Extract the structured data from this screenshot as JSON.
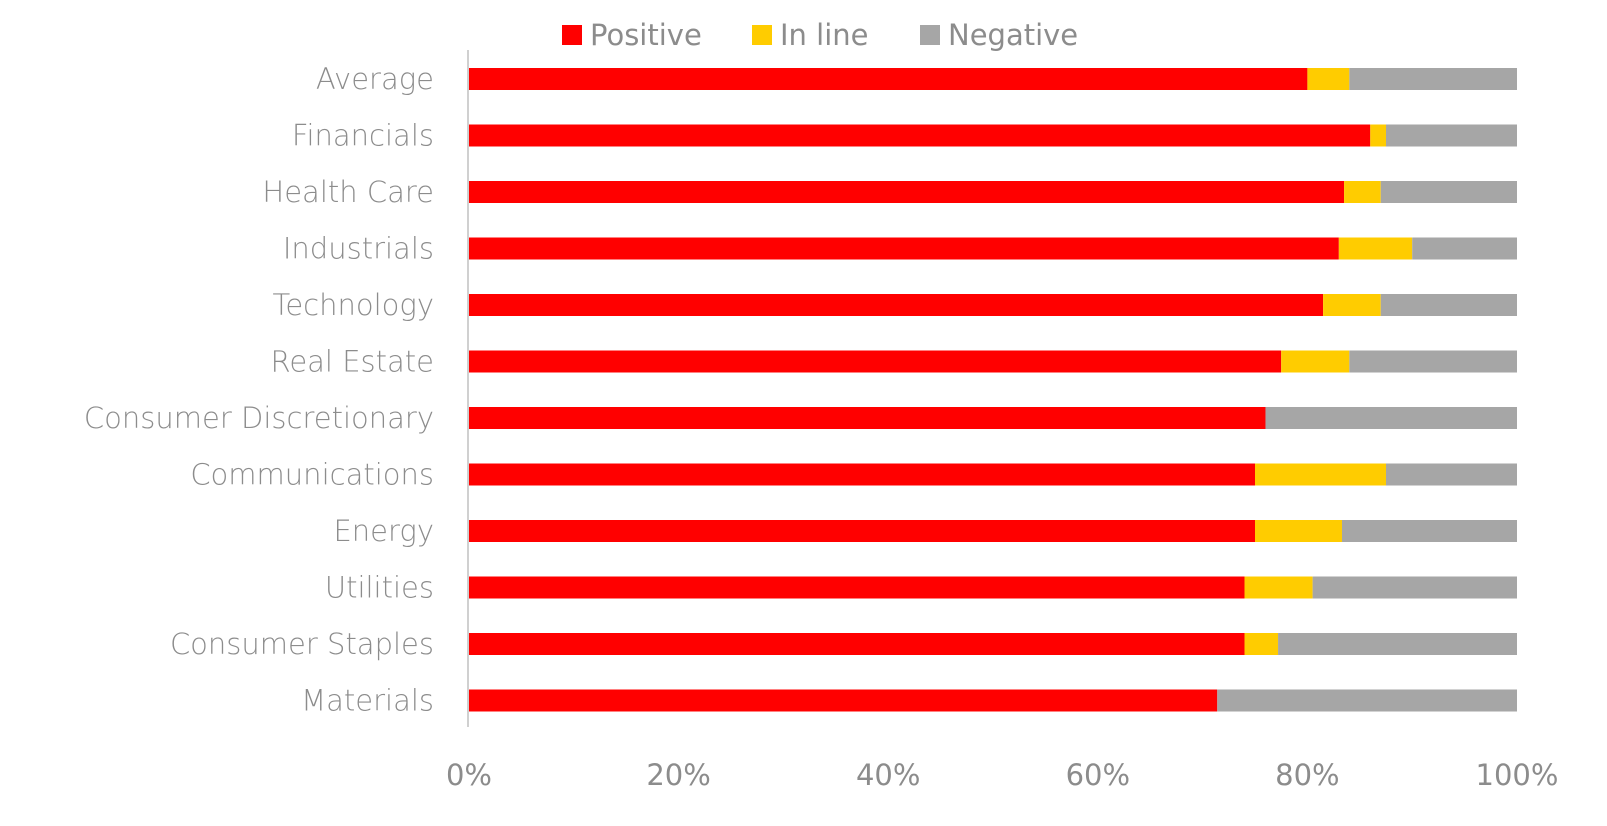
{
  "chart_data": {
    "type": "bar",
    "orientation": "horizontal",
    "stacked": true,
    "percent_stacked": true,
    "categories": [
      "Average",
      "Financials",
      "Health Care",
      "Industrials",
      "Technology",
      "Real Estate",
      "Consumer Discretionary",
      "Communications",
      "Energy",
      "Utilities",
      "Consumer Staples",
      "Materials"
    ],
    "series": [
      {
        "name": "Positive",
        "color": "#ff0000",
        "values": [
          80,
          86,
          83.5,
          83,
          81.5,
          77.5,
          76,
          75,
          75,
          74,
          74,
          71.4
        ]
      },
      {
        "name": "In line",
        "color": "#ffcc00",
        "values": [
          4,
          1.5,
          3.5,
          7,
          5.5,
          6.5,
          0,
          12.5,
          8.3,
          6.5,
          3.2,
          0
        ]
      },
      {
        "name": "Negative",
        "color": "#a6a6a6",
        "values": [
          16,
          12.5,
          13,
          10,
          13,
          16,
          24,
          12.5,
          16.7,
          19.5,
          22.8,
          28.6
        ]
      }
    ],
    "xlim": [
      0,
      100
    ],
    "x_ticks": [
      "0%",
      "20%",
      "40%",
      "60%",
      "80%",
      "100%"
    ],
    "xlabel": "",
    "ylabel": "",
    "title": "",
    "grid": false,
    "legend_position": "top"
  }
}
